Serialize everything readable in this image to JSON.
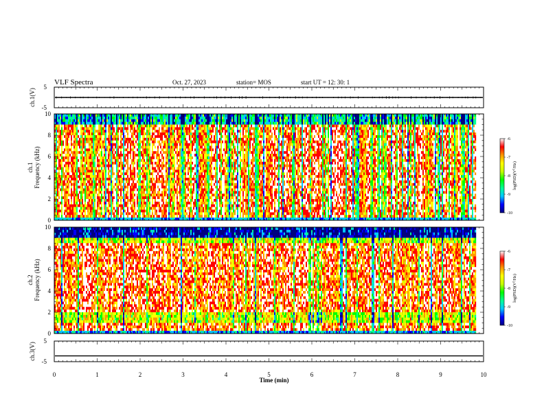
{
  "header": {
    "title": "VLF Spectra",
    "date": "Oct. 27, 2023",
    "station": "station= MOS",
    "start": "start  UT =   12: 30: 1"
  },
  "chart_data": [
    {
      "type": "line",
      "panel": "ch1-waveform",
      "ylabel": "ch.1(V)",
      "ylim": [
        -5,
        5
      ],
      "yticks": [
        "5",
        "-5"
      ],
      "xlim": [
        0,
        10
      ],
      "level": 0,
      "impulsive_spikes": true
    },
    {
      "type": "heatmap",
      "panel": "ch1-spectrogram",
      "ylabel": "ch.1\nFrequency (kHz)",
      "ylim": [
        0,
        10
      ],
      "yticks": [
        "0",
        "2",
        "4",
        "6",
        "8",
        "10"
      ],
      "xlim": [
        0,
        10
      ],
      "data_end_min": 9.8,
      "colorbar": {
        "label": "log(PSD)(V²/Hz)",
        "range": [
          -10,
          -6
        ],
        "ticks": [
          "-6",
          "-7",
          "-8",
          "-9",
          "-10"
        ]
      },
      "colors": [
        "#000080",
        "#0000ff",
        "#00c8ff",
        "#00ff96",
        "#00ff00",
        "#c8ff00",
        "#ffff00",
        "#ff9600",
        "#ff0000",
        "#ffffff"
      ]
    },
    {
      "type": "heatmap",
      "panel": "ch2-spectrogram",
      "ylabel": "ch.2\nFrequency (kHz)",
      "ylim": [
        0,
        10
      ],
      "yticks": [
        "0",
        "2",
        "4",
        "6",
        "8",
        "10"
      ],
      "xlim": [
        0,
        10
      ],
      "data_end_min": 9.8,
      "colorbar": {
        "label": "log(PSD)(V²/Hz)",
        "range": [
          -10,
          -6
        ],
        "ticks": [
          "-6",
          "-7",
          "-8",
          "-9",
          "-10"
        ]
      },
      "colors": [
        "#000080",
        "#0000ff",
        "#00c8ff",
        "#00ff96",
        "#00ff00",
        "#c8ff00",
        "#ffff00",
        "#ff9600",
        "#ff0000",
        "#ffffff"
      ]
    },
    {
      "type": "line",
      "panel": "ch3-waveform",
      "ylabel": "ch.3(V)",
      "ylim": [
        -5,
        5
      ],
      "yticks": [
        "5",
        "-5"
      ],
      "xlim": [
        0,
        10
      ],
      "level": -2.2,
      "impulsive_spikes": false
    }
  ],
  "x_axis": {
    "label": "Time (min)",
    "ticks": [
      "0",
      "1",
      "2",
      "3",
      "4",
      "5",
      "6",
      "7",
      "8",
      "9",
      "10"
    ]
  }
}
